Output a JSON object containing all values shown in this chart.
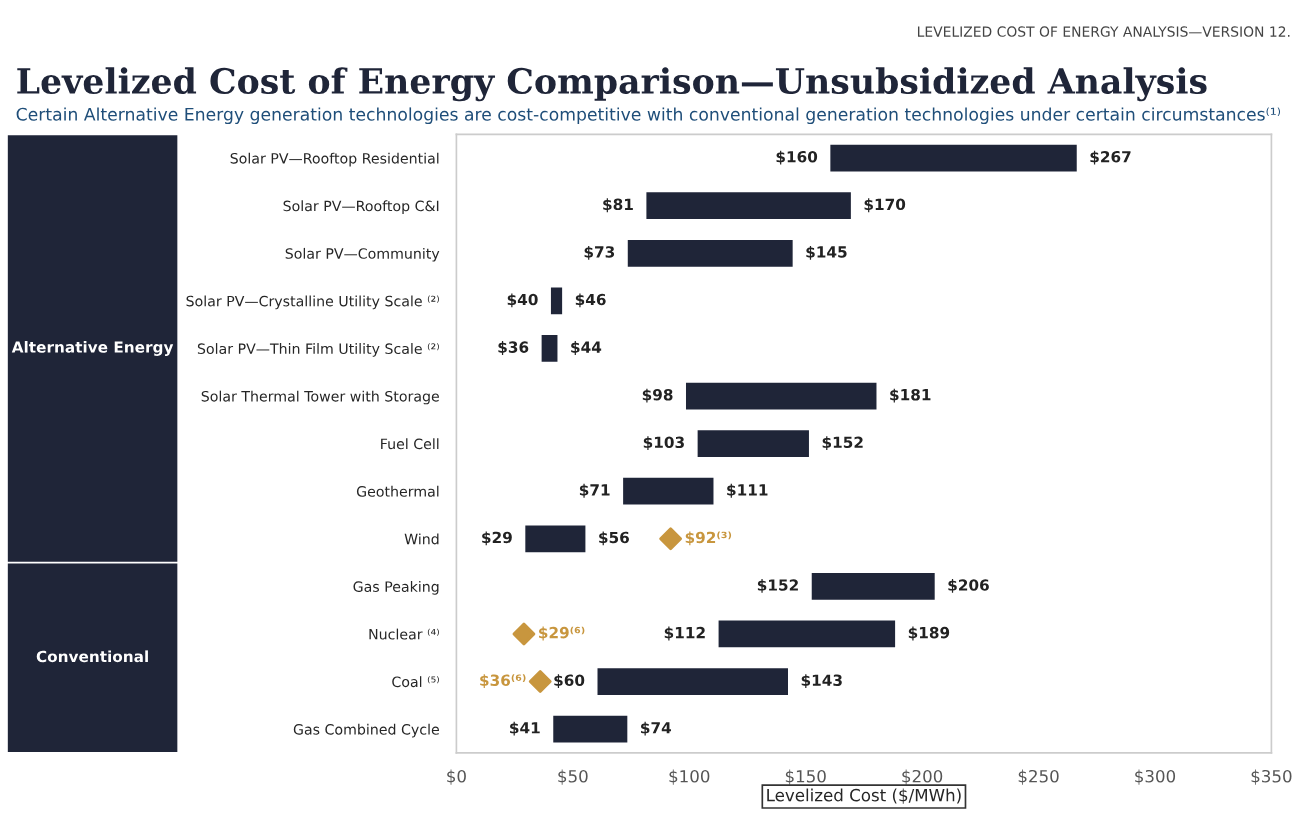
{
  "chart_data": {
    "type": "bar",
    "orientation": "horizontal",
    "title": "Levelized Cost of Energy Comparison—Unsubsidized Analysis",
    "subtitle": "Certain Alternative Energy generation technologies are cost-competitive with conventional generation technologies under certain circumstances⁽¹⁾",
    "xlabel": "Levelized Cost ($/MWh)",
    "categories": [
      "Solar PV—Rooftop Residential",
      "Solar PV—Rooftop C&I",
      "Solar PV—Community",
      "Solar PV—Crystalline Utility Scale ⁽²⁾",
      "Solar PV—Thin Film Utility Scale ⁽²⁾",
      "Solar Thermal Tower with Storage",
      "Fuel Cell",
      "Geothermal",
      "Wind",
      "Gas Peaking",
      "Nuclear ⁽⁴⁾",
      "Coal ⁽⁵⁾",
      "Gas Combined Cycle"
    ],
    "series": [
      {
        "color": "#1f2538",
        "base": [
          160,
          81,
          73,
          40,
          36,
          98,
          103,
          71,
          29,
          152,
          112,
          60,
          41
        ],
        "values": [
          107,
          89,
          72,
          6,
          8,
          83,
          49,
          40,
          27,
          54,
          77,
          83,
          33
        ]
      },
      {
        "type": "scatter",
        "color": "#c8963e",
        "marker": "diamond",
        "values": [
          null,
          null,
          null,
          null,
          null,
          null,
          null,
          null,
          92,
          null,
          29,
          36,
          null
        ]
      }
    ],
    "xlim": [
      0,
      350
    ],
    "xticks": [
      {
        "value": 0,
        "label": "$0"
      },
      {
        "value": 50,
        "label": "$50"
      },
      {
        "value": 100,
        "label": "$100"
      },
      {
        "value": 150,
        "label": "$150"
      },
      {
        "value": 200,
        "label": "$200"
      },
      {
        "value": 250,
        "label": "$250"
      },
      {
        "value": 300,
        "label": "$300"
      },
      {
        "value": 350,
        "label": "$350"
      }
    ],
    "grid": false,
    "legend": false,
    "annotations": [
      "LEVELIZED COST OF ENERGY ANALYSIS—VERSION 12.",
      "Alternative Energy",
      "Conventional",
      {
        "text": "$160",
        "x": 160,
        "y": "Solar PV—Rooftop Residential"
      },
      {
        "text": "$267",
        "x": 267,
        "y": "Solar PV—Rooftop Residential"
      },
      {
        "text": "$81",
        "x": 81,
        "y": "Solar PV—Rooftop C&I"
      },
      {
        "text": "$170",
        "x": 170,
        "y": "Solar PV—Rooftop C&I"
      },
      {
        "text": "$73",
        "x": 73,
        "y": "Solar PV—Community"
      },
      {
        "text": "$145",
        "x": 145,
        "y": "Solar PV—Community"
      },
      {
        "text": "$40",
        "x": 40,
        "y": "Solar PV—Crystalline Utility Scale ⁽²⁾"
      },
      {
        "text": "$46",
        "x": 46,
        "y": "Solar PV—Crystalline Utility Scale ⁽²⁾"
      },
      {
        "text": "$36",
        "x": 36,
        "y": "Solar PV—Thin Film Utility Scale ⁽²⁾"
      },
      {
        "text": "$44",
        "x": 44,
        "y": "Solar PV—Thin Film Utility Scale ⁽²⁾"
      },
      {
        "text": "$98",
        "x": 98,
        "y": "Solar Thermal Tower with Storage"
      },
      {
        "text": "$181",
        "x": 181,
        "y": "Solar Thermal Tower with Storage"
      },
      {
        "text": "$103",
        "x": 103,
        "y": "Fuel Cell"
      },
      {
        "text": "$152",
        "x": 152,
        "y": "Fuel Cell"
      },
      {
        "text": "$71",
        "x": 71,
        "y": "Geothermal"
      },
      {
        "text": "$111",
        "x": 111,
        "y": "Geothermal"
      },
      {
        "text": "$29",
        "x": 29,
        "y": "Wind"
      },
      {
        "text": "$56",
        "x": 56,
        "y": "Wind"
      },
      {
        "text": "$92⁽³⁾",
        "x": 92,
        "y": "Wind"
      },
      {
        "text": "$152",
        "x": 152,
        "y": "Gas Peaking"
      },
      {
        "text": "$206",
        "x": 206,
        "y": "Gas Peaking"
      },
      {
        "text": "$29⁽⁶⁾",
        "x": 29,
        "y": "Nuclear ⁽⁴⁾"
      },
      {
        "text": "$112",
        "x": 112,
        "y": "Nuclear ⁽⁴⁾"
      },
      {
        "text": "$189",
        "x": 189,
        "y": "Nuclear ⁽⁴⁾"
      },
      {
        "text": "$36⁽⁶⁾",
        "x": 36,
        "y": "Coal ⁽⁵⁾"
      },
      {
        "text": "$60",
        "x": 60,
        "y": "Coal ⁽⁵⁾"
      },
      {
        "text": "$143",
        "x": 143,
        "y": "Coal ⁽⁵⁾"
      },
      {
        "text": "$41",
        "x": 41,
        "y": "Gas Combined Cycle"
      },
      {
        "text": "$74",
        "x": 74,
        "y": "Gas Combined Cycle"
      }
    ]
  }
}
